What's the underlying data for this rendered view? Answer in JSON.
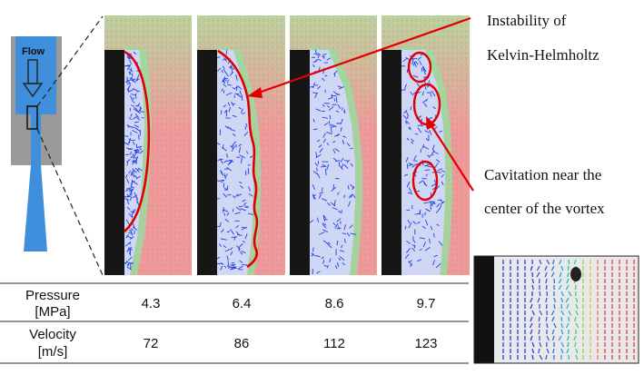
{
  "nozzle": {
    "flow_label": "Flow"
  },
  "annotations": {
    "kh_line1": "Instability of",
    "kh_line2": "Kelvin-Helmholtz",
    "cav_line1": "Cavitation near the",
    "cav_line2": "center of the vortex"
  },
  "table": {
    "rows": [
      {
        "label_line1": "Pressure",
        "label_line2": "[MPa]",
        "values": [
          "4.3",
          "6.4",
          "8.6",
          "9.7"
        ]
      },
      {
        "label_line1": "Velocity",
        "label_line2": "[m/s]",
        "values": [
          "72",
          "86",
          "112",
          "123"
        ]
      }
    ]
  },
  "colors": {
    "nozzle_body": "#9a9a9a",
    "nozzle_flow": "#3f8fdd",
    "highlight": "#e00000",
    "wall": "#161616",
    "flow_low": "#2040e0",
    "flow_high": "#e04040"
  }
}
